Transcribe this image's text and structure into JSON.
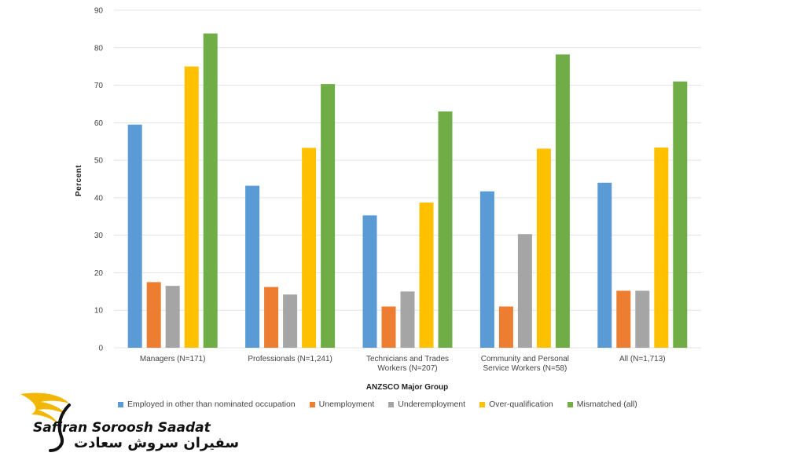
{
  "chart_data": {
    "type": "bar",
    "xlabel": "ANZSCO  Major Group",
    "ylabel": "Percent",
    "ylim": [
      0,
      90
    ],
    "yticks": [
      0,
      10,
      20,
      30,
      40,
      50,
      60,
      70,
      80,
      90
    ],
    "grid": true,
    "legend_position": "bottom",
    "categories": [
      [
        "Managers (N=171)"
      ],
      [
        "Professionals (N=1,241)"
      ],
      [
        "Technicians and Trades",
        "Workers (N=207)"
      ],
      [
        "Community and Personal",
        "Service Workers (N=58)"
      ],
      [
        "All (N=1,713)"
      ]
    ],
    "series": [
      {
        "name": "Employed in other than nominated occupation",
        "color": "#5b9bd5",
        "values": [
          59.5,
          43.2,
          35.3,
          41.7,
          44.0
        ]
      },
      {
        "name": "Unemployment",
        "color": "#ed7d31",
        "values": [
          17.5,
          16.2,
          11.0,
          11.0,
          15.2
        ]
      },
      {
        "name": "Underemployment",
        "color": "#a5a5a5",
        "values": [
          16.5,
          14.2,
          15.0,
          30.3,
          15.2
        ]
      },
      {
        "name": "Over-qualification",
        "color": "#ffc000",
        "values": [
          75.0,
          53.3,
          38.7,
          53.1,
          53.4
        ]
      },
      {
        "name": "Mismatched (all)",
        "color": "#70ad47",
        "values": [
          83.8,
          70.3,
          63.0,
          78.2,
          71.0
        ]
      }
    ]
  },
  "logo": {
    "latin": "Safiran Soroosh Saadat",
    "persian": "سفیران سروش سعادت"
  }
}
